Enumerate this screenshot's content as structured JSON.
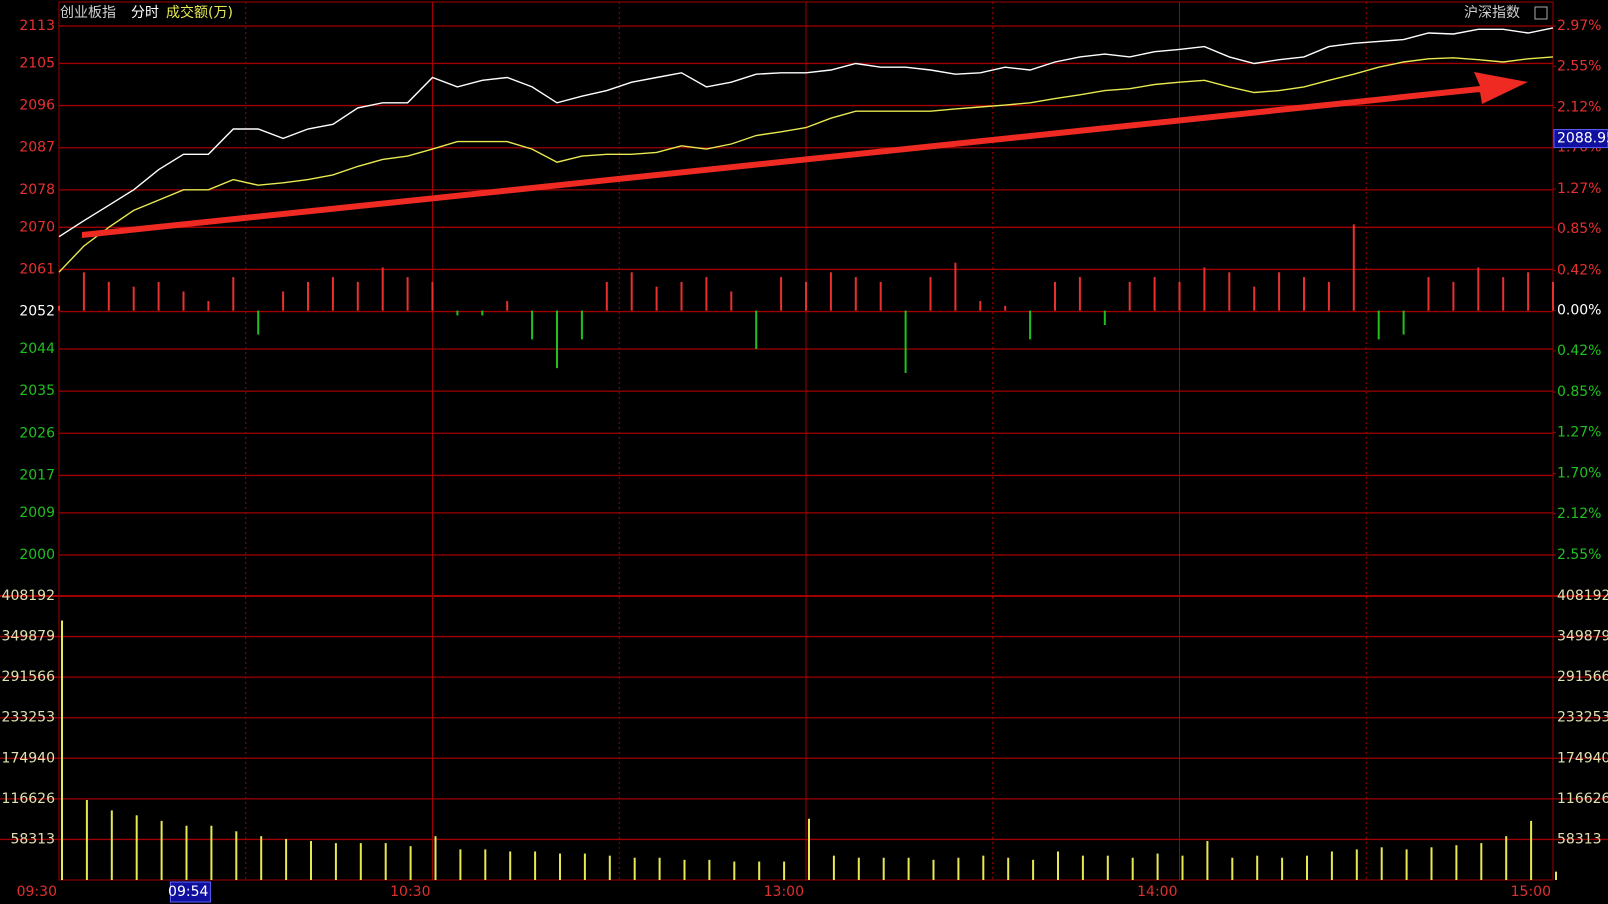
{
  "header": {
    "title": "创业板指",
    "mode": "分时",
    "index_label": "沪深指数"
  },
  "chart_data": {
    "type": "line",
    "xlim": [
      0,
      240
    ],
    "xticks": [
      {
        "value": 0,
        "label": "09:30"
      },
      {
        "value": 60,
        "label": "10:30"
      },
      {
        "value": 120,
        "label": "13:00"
      },
      {
        "value": 180,
        "label": "14:00"
      },
      {
        "value": 240,
        "label": "15:00"
      }
    ],
    "xgrid": [
      30,
      60,
      90,
      120,
      150,
      180,
      210
    ],
    "cursor_time": {
      "value": 24,
      "label": "09:54"
    },
    "cursor_price": 2088.95,
    "ylim": [
      2000,
      2113
    ],
    "yticks": [
      2000,
      2009,
      2017,
      2026,
      2035,
      2044,
      2052,
      2061,
      2070,
      2078,
      2087,
      2096,
      2105,
      2113
    ],
    "y2lim": [
      -2.55,
      2.97
    ],
    "y2ticks": [
      {
        "value": -2.55,
        "label": "2.55%"
      },
      {
        "value": -2.12,
        "label": "2.12%"
      },
      {
        "value": -1.7,
        "label": "1.70%"
      },
      {
        "value": -1.27,
        "label": "1.27%"
      },
      {
        "value": -0.85,
        "label": "0.85%"
      },
      {
        "value": -0.42,
        "label": "0.42%"
      },
      {
        "value": 0,
        "label": "0.00%"
      },
      {
        "value": 0.42,
        "label": "0.42%"
      },
      {
        "value": 0.85,
        "label": "0.85%"
      },
      {
        "value": 1.27,
        "label": "1.27%"
      },
      {
        "value": 1.7,
        "label": "1.70%"
      },
      {
        "value": 2.12,
        "label": "2.12%"
      },
      {
        "value": 2.55,
        "label": "2.55%"
      },
      {
        "value": 2.97,
        "label": "2.97%"
      }
    ],
    "up_color": "#e83030",
    "down_color": "#20c020",
    "flat_color": "#ffffff",
    "grid_color": "#a00000",
    "x": [
      0,
      4,
      8,
      12,
      16,
      20,
      24,
      28,
      32,
      36,
      40,
      44,
      48,
      52,
      56,
      60,
      64,
      68,
      72,
      76,
      80,
      84,
      88,
      92,
      96,
      100,
      104,
      108,
      112,
      116,
      120,
      124,
      128,
      132,
      136,
      140,
      144,
      148,
      152,
      156,
      160,
      164,
      168,
      172,
      176,
      180,
      184,
      188,
      192,
      196,
      200,
      204,
      208,
      212,
      216,
      220,
      224,
      228,
      232,
      236,
      240
    ],
    "series": [
      {
        "type": "line",
        "color": "#ffffff",
        "values": [
          2068,
          2071.4,
          2074.7,
          2078,
          2082.3,
          2085.6,
          2085.6,
          2091,
          2091,
          2089,
          2091,
          2092,
          2095.5,
          2096.6,
          2096.6,
          2102,
          2100,
          2101.4,
          2102,
          2100,
          2096.6,
          2098,
          2099.2,
          2101,
          2102,
          2103,
          2100,
          2101,
          2102.7,
          2103,
          2103,
          2103.6,
          2105,
          2104.2,
          2104.2,
          2103.6,
          2102.7,
          2103,
          2104.2,
          2103.6,
          2105.3,
          2106.4,
          2107,
          2106.4,
          2107.5,
          2108,
          2108.6,
          2106.4,
          2105,
          2105.8,
          2106.4,
          2108.6,
          2109.3,
          2109.7,
          2110.1,
          2111.5,
          2111.3,
          2112.3,
          2112.3,
          2111.5,
          2112.6
        ]
      },
      {
        "type": "line",
        "color": "#e8e850",
        "values": [
          2060.4,
          2066,
          2070,
          2073.6,
          2075.8,
          2078,
          2078,
          2080.2,
          2079,
          2079.5,
          2080.2,
          2081.2,
          2083,
          2084.5,
          2085.2,
          2086.7,
          2088.3,
          2088.3,
          2088.3,
          2086.7,
          2083.9,
          2085.2,
          2085.6,
          2085.6,
          2086,
          2087.4,
          2086.7,
          2087.8,
          2089.6,
          2090.4,
          2091.3,
          2093.3,
          2094.8,
          2094.8,
          2094.8,
          2094.8,
          2095.3,
          2095.7,
          2096.1,
          2096.6,
          2097.5,
          2098.3,
          2099.2,
          2099.6,
          2100.5,
          2101,
          2101.4,
          2100,
          2098.8,
          2099.2,
          2100,
          2101.4,
          2102.7,
          2104.2,
          2105.3,
          2106,
          2106.2,
          2105.8,
          2105.3,
          2106,
          2106.4
        ]
      },
      {
        "type": "bar",
        "axis": "y2",
        "values": [
          0.05,
          0.4,
          0.3,
          0.25,
          0.3,
          0.2,
          0.1,
          0.35,
          -0.25,
          0.2,
          0.3,
          0.35,
          0.3,
          0.45,
          0.35,
          0.3,
          -0.05,
          -0.05,
          0.1,
          -0.3,
          -0.6,
          -0.3,
          0.3,
          0.4,
          0.25,
          0.3,
          0.35,
          0.2,
          -0.4,
          0.35,
          0.3,
          0.4,
          0.35,
          0.3,
          -0.65,
          0.35,
          0.5,
          0.1,
          0.05,
          -0.3,
          0.3,
          0.35,
          -0.15,
          0.3,
          0.35,
          0.3,
          0.45,
          0.4,
          0.25,
          0.4,
          0.35,
          0.3,
          0.9,
          -0.3,
          -0.25,
          0.35,
          0.3,
          0.45,
          0.35,
          0.4,
          0.3
        ]
      }
    ],
    "volume": {
      "type": "bar",
      "title": "成交额(万)",
      "color": "#e8e850",
      "ylim": [
        0,
        408192
      ],
      "yticks": [
        58313,
        116626,
        174940,
        233253,
        291566,
        349879,
        408192
      ],
      "values": [
        372900,
        115000,
        100000,
        93000,
        85000,
        78000,
        78000,
        70000,
        63000,
        59000,
        56000,
        53000,
        53000,
        53000,
        48600,
        63000,
        44000,
        44000,
        41000,
        41000,
        38000,
        38000,
        35000,
        32000,
        32000,
        29000,
        29000,
        26500,
        26500,
        26500,
        88000,
        35000,
        32000,
        32000,
        32000,
        29000,
        32000,
        35000,
        32000,
        29000,
        41000,
        35000,
        35000,
        32000,
        38000,
        35000,
        56000,
        32000,
        35000,
        32000,
        35000,
        41000,
        44000,
        47000,
        44000,
        47000,
        50000,
        53000,
        63000,
        85000,
        12000
      ]
    }
  }
}
